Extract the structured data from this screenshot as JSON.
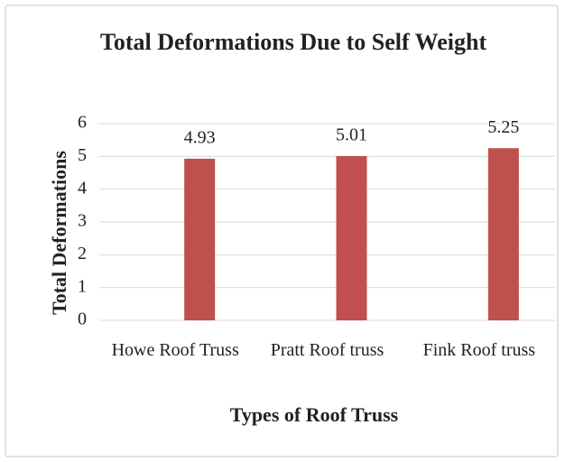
{
  "chart_data": {
    "type": "bar",
    "title": "Total Deformations Due to Self Weight",
    "categories": [
      "Howe Roof Truss",
      "Pratt Roof truss",
      "Fink Roof truss"
    ],
    "values": [
      4.93,
      5.01,
      5.25
    ],
    "color": "#c0504d",
    "ylim": [
      0,
      6
    ],
    "yticks": [
      0,
      1,
      2,
      3,
      4,
      5,
      6
    ],
    "grid": true,
    "x_label": "Types of Roof Truss",
    "y_label": "Total Deformations"
  }
}
